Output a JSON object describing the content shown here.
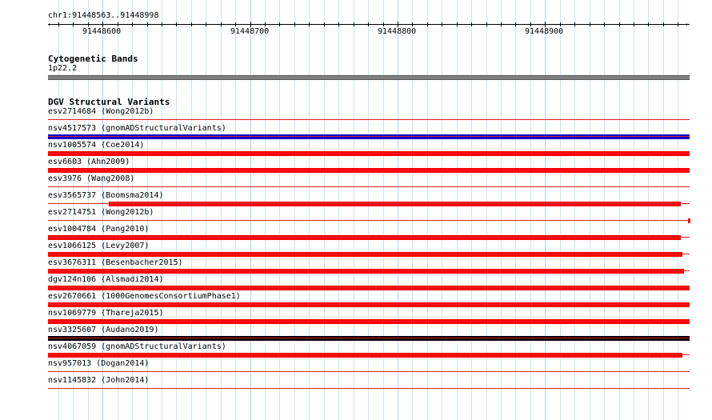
{
  "ruler": {
    "range_label": "chr1:91448563..91448998",
    "start": 91448563,
    "end": 91448998,
    "tick_labels": [
      "91448600",
      "91448700",
      "91448800",
      "91448900"
    ]
  },
  "cytoband_track": {
    "title": "Cytogenetic Bands",
    "band_label": "1p22.2",
    "band_color": "#808080"
  },
  "dgv_track": {
    "title": "DGV Structural Variants",
    "variants": [
      {
        "label": "esv2714684 (Wong2012b)",
        "color": "#ff0000",
        "start": null,
        "end": null
      },
      {
        "label": "nsv4517573 (gnomADStructuralVariants)",
        "color": "#0000cc",
        "start": 91448563,
        "end": 91448998
      },
      {
        "label": "nsv1005574 (Coe2014)",
        "color": "#ff0000",
        "start": 91448563,
        "end": 91448998
      },
      {
        "label": "esv6603 (Ahn2009)",
        "color": "#ff0000",
        "start": 91448563,
        "end": 91448998
      },
      {
        "label": "esv3976 (Wang2008)",
        "color": "#ff0000",
        "start": null,
        "end": null
      },
      {
        "label": "esv3565737 (Boomsma2014)",
        "color": "#ff0000",
        "start": 91448604,
        "end": 91448992
      },
      {
        "label": "esv2714751 (Wong2012b)",
        "color": "#ff0000",
        "start": 91448997,
        "end": 91448998
      },
      {
        "label": "esv1004784 (Pang2010)",
        "color": "#ff0000",
        "start": 91448563,
        "end": 91448992
      },
      {
        "label": "esv1066125 (Levy2007)",
        "color": "#ff0000",
        "start": 91448563,
        "end": 91448993
      },
      {
        "label": "esv3676311 (Besenbacher2015)",
        "color": "#ff0000",
        "start": 91448563,
        "end": 91448994
      },
      {
        "label": "dgv124n106 (Alsmadi2014)",
        "color": "#ff0000",
        "start": 91448563,
        "end": 91448998
      },
      {
        "label": "esv2670661 (1000GenomesConsortiumPhase1)",
        "color": "#ff0000",
        "start": 91448563,
        "end": 91448998
      },
      {
        "label": "nsv1069779 (Thareja2015)",
        "color": "#ff0000",
        "start": 91448563,
        "end": 91448998
      },
      {
        "label": "nsv3325607 (Audano2019)",
        "color": "#000000",
        "start": 91448563,
        "end": 91448998
      },
      {
        "label": "nsv4067059 (gnomADStructuralVariants)",
        "color": "#ff0000",
        "start": 91448563,
        "end": 91448993
      },
      {
        "label": "nsv957013 (Dogan2014)",
        "color": "#ff0000",
        "start": null,
        "end": null
      },
      {
        "label": "nsv1145832 (John2014)",
        "color": "#ff0000",
        "start": null,
        "end": null
      }
    ]
  },
  "colors": {
    "gridline": "#c8e6f7",
    "separator": "#e02020"
  }
}
